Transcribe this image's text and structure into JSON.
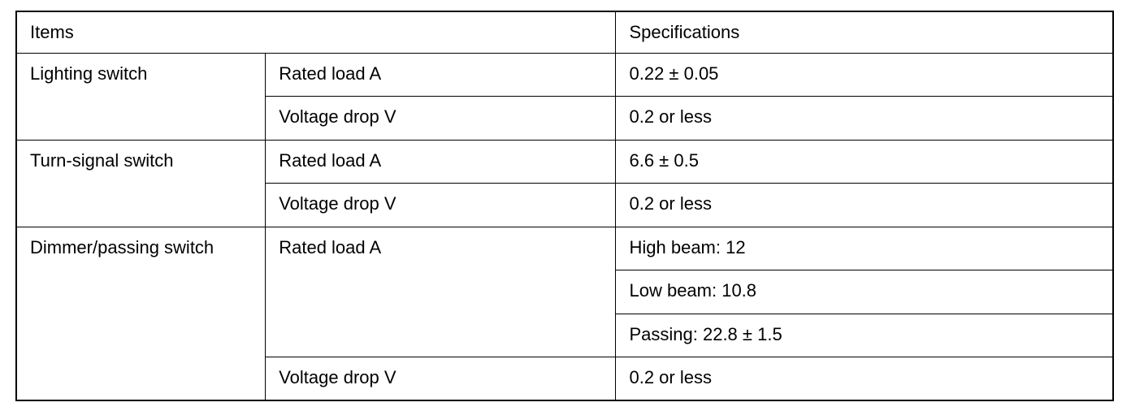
{
  "header": {
    "items": "Items",
    "specifications": "Specifications"
  },
  "groups": [
    {
      "item": "Lighting switch",
      "rows": [
        {
          "param": "Rated load A",
          "specs": [
            "0.22 ± 0.05"
          ]
        },
        {
          "param": "Voltage drop V",
          "specs": [
            "0.2 or less"
          ]
        }
      ]
    },
    {
      "item": "Turn-signal switch",
      "rows": [
        {
          "param": "Rated load A",
          "specs": [
            "6.6 ± 0.5"
          ]
        },
        {
          "param": "Voltage drop V",
          "specs": [
            "0.2 or less"
          ]
        }
      ]
    },
    {
      "item": "Dimmer/passing switch",
      "rows": [
        {
          "param": "Rated load A",
          "specs": [
            "High beam: 12",
            "Low beam: 10.8",
            "Passing: 22.8 ± 1.5"
          ]
        },
        {
          "param": "Voltage drop V",
          "specs": [
            "0.2 or less"
          ]
        }
      ]
    }
  ]
}
